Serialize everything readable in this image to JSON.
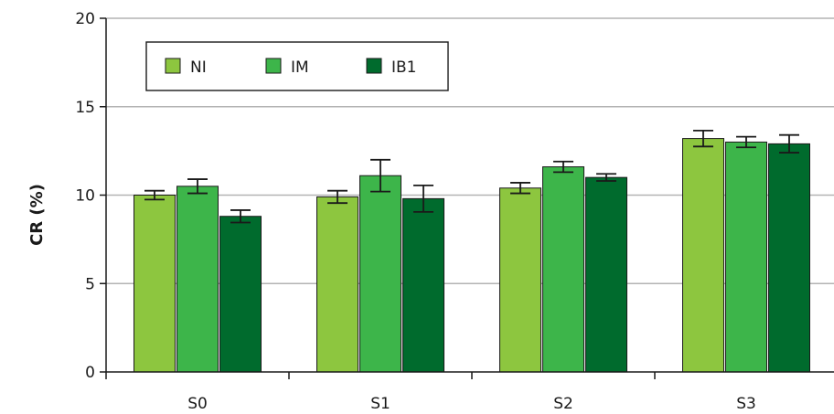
{
  "chart_data": {
    "type": "bar",
    "ylabel": "CR (%)",
    "xlabel": "",
    "ylim": [
      0,
      20
    ],
    "yticks": [
      0,
      5,
      10,
      15,
      20
    ],
    "grid": true,
    "legend_position": "top-left",
    "categories": [
      "S0",
      "S1",
      "S2",
      "S3"
    ],
    "series": [
      {
        "name": "NI",
        "color": "#8dc63f",
        "values": [
          10.0,
          9.9,
          10.4,
          13.2
        ],
        "errors": [
          0.25,
          0.35,
          0.3,
          0.45
        ]
      },
      {
        "name": "IM",
        "color": "#3db54a",
        "values": [
          10.5,
          11.1,
          11.6,
          13.0
        ],
        "errors": [
          0.4,
          0.9,
          0.3,
          0.3
        ]
      },
      {
        "name": "IB1",
        "color": "#006b2d",
        "values": [
          8.8,
          9.8,
          11.0,
          12.9
        ],
        "errors": [
          0.35,
          0.75,
          0.2,
          0.5
        ]
      }
    ]
  }
}
